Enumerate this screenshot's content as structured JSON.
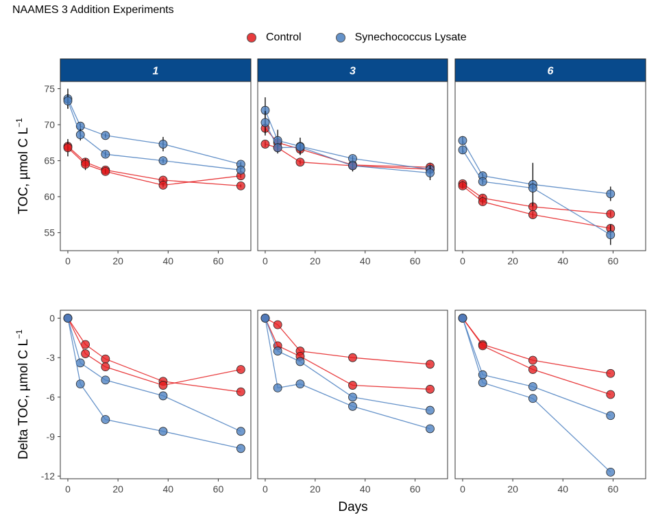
{
  "chart_data": {
    "type": "scatter",
    "title": "NAAMES 3 Addition Experiments",
    "legend": {
      "placement": "top",
      "entries": [
        {
          "name": "Control",
          "color": "#e41a1c"
        },
        {
          "name": "Synechococcus Lysate",
          "color": "#4a7fc0"
        }
      ]
    },
    "xlabel": "Days",
    "colors": {
      "Control": "#e41a1c",
      "Synechococcus Lysate": "#4a7fc0",
      "strip": "#084a8c"
    },
    "facets": [
      "1",
      "3",
      "6"
    ],
    "rows": [
      {
        "key": "toc",
        "ylabel_main": "TOC, µmol C L",
        "ylabel_sup": "−1",
        "ylim": [
          52.5,
          76
        ],
        "yticks": [
          55,
          60,
          65,
          70,
          75
        ],
        "ytick_labels": [
          "55",
          "60",
          "65",
          "70",
          "75"
        ],
        "xlim": [
          -3,
          73
        ],
        "xticks": [
          0,
          20,
          40,
          60
        ],
        "panels": [
          {
            "facet": "1",
            "series": [
              {
                "name": "Control",
                "x": [
                  0,
                  7,
                  15,
                  38,
                  69
                ],
                "y": [
                  67.0,
                  64.8,
                  63.7,
                  62.3,
                  61.5
                ],
                "err": [
                  0.6,
                  0.4,
                  0.3,
                  0.3,
                  0.2
                ]
              },
              {
                "name": "Control",
                "x": [
                  0,
                  7,
                  15,
                  38,
                  69
                ],
                "y": [
                  66.8,
                  64.5,
                  63.5,
                  61.6,
                  62.9
                ],
                "err": [
                  1.2,
                  0.8,
                  0.3,
                  0.3,
                  0.3
                ]
              },
              {
                "name": "Synechococcus Lysate",
                "x": [
                  0,
                  5,
                  15,
                  38,
                  69
                ],
                "y": [
                  73.6,
                  69.8,
                  68.5,
                  67.3,
                  64.5
                ],
                "err": [
                  1.4,
                  0.4,
                  0.3,
                  1.0,
                  0.3
                ]
              },
              {
                "name": "Synechococcus Lysate",
                "x": [
                  0,
                  5,
                  15,
                  38,
                  69
                ],
                "y": [
                  73.3,
                  68.6,
                  65.9,
                  65.0,
                  63.7
                ],
                "err": [
                  1.0,
                  0.8,
                  0.4,
                  0.3,
                  0.3
                ]
              }
            ]
          },
          {
            "facet": "3",
            "series": [
              {
                "name": "Control",
                "x": [
                  0,
                  5,
                  14,
                  35,
                  66
                ],
                "y": [
                  69.5,
                  67.5,
                  66.6,
                  64.4,
                  64.1
                ],
                "err": [
                  1.0,
                  0.5,
                  0.8,
                  0.5,
                  0.6
                ]
              },
              {
                "name": "Control",
                "x": [
                  0,
                  5,
                  14,
                  35,
                  66
                ],
                "y": [
                  67.3,
                  66.8,
                  64.8,
                  64.3,
                  63.8
                ],
                "err": [
                  0.4,
                  0.8,
                  0.3,
                  0.8,
                  0.4
                ]
              },
              {
                "name": "Synechococcus Lysate",
                "x": [
                  0,
                  5,
                  14,
                  35,
                  66
                ],
                "y": [
                  72.0,
                  67.8,
                  67.0,
                  65.3,
                  63.8
                ],
                "err": [
                  1.8,
                  1.5,
                  1.2,
                  0.4,
                  0.5
                ]
              },
              {
                "name": "Synechococcus Lysate",
                "x": [
                  0,
                  5,
                  14,
                  35,
                  66
                ],
                "y": [
                  70.3,
                  66.8,
                  66.9,
                  64.3,
                  63.3
                ],
                "err": [
                  1.6,
                  0.6,
                  0.5,
                  0.5,
                  1.0
                ]
              }
            ]
          },
          {
            "facet": "6",
            "series": [
              {
                "name": "Control",
                "x": [
                  0,
                  8,
                  28,
                  59
                ],
                "y": [
                  61.8,
                  59.8,
                  58.6,
                  57.6
                ],
                "err": [
                  0.4,
                  0.4,
                  0.5,
                  0.4
                ]
              },
              {
                "name": "Control",
                "x": [
                  0,
                  8,
                  28,
                  59
                ],
                "y": [
                  61.5,
                  59.3,
                  57.5,
                  55.6
                ],
                "err": [
                  0.4,
                  0.4,
                  0.4,
                  0.4
                ]
              },
              {
                "name": "Synechococcus Lysate",
                "x": [
                  0,
                  8,
                  28,
                  59
                ],
                "y": [
                  67.8,
                  62.9,
                  61.7,
                  60.4
                ],
                "err": [
                  0.6,
                  0.4,
                  3.0,
                  1.0
                ]
              },
              {
                "name": "Synechococcus Lysate",
                "x": [
                  0,
                  8,
                  28,
                  59
                ],
                "y": [
                  66.5,
                  62.1,
                  61.2,
                  54.7
                ],
                "err": [
                  0.5,
                  0.4,
                  0.5,
                  1.4
                ]
              }
            ]
          }
        ]
      },
      {
        "key": "delta",
        "ylabel_main": "Delta TOC, µmol C L",
        "ylabel_sup": "−1",
        "ylim": [
          -12.2,
          0.6
        ],
        "yticks": [
          -12,
          -9,
          -6,
          -3,
          0
        ],
        "ytick_labels": [
          "-12",
          "-9",
          "-6",
          "-3",
          "0"
        ],
        "xlim": [
          -3,
          73
        ],
        "xticks": [
          0,
          20,
          40,
          60
        ],
        "panels": [
          {
            "facet": "1",
            "series": [
              {
                "name": "Control",
                "x": [
                  0,
                  7,
                  15,
                  38,
                  69
                ],
                "y": [
                  0,
                  -2.0,
                  -3.1,
                  -4.8,
                  -5.6
                ]
              },
              {
                "name": "Control",
                "x": [
                  0,
                  7,
                  15,
                  38,
                  69
                ],
                "y": [
                  0,
                  -2.7,
                  -3.7,
                  -5.1,
                  -3.9
                ]
              },
              {
                "name": "Synechococcus Lysate",
                "x": [
                  0,
                  5,
                  15,
                  38,
                  69
                ],
                "y": [
                  0,
                  -3.4,
                  -4.7,
                  -5.9,
                  -8.6
                ]
              },
              {
                "name": "Synechococcus Lysate",
                "x": [
                  0,
                  5,
                  15,
                  38,
                  69
                ],
                "y": [
                  0,
                  -5.0,
                  -7.7,
                  -8.6,
                  -9.9
                ]
              }
            ]
          },
          {
            "facet": "3",
            "series": [
              {
                "name": "Control",
                "x": [
                  0,
                  5,
                  14,
                  35,
                  66
                ],
                "y": [
                  0,
                  -0.5,
                  -2.5,
                  -3.0,
                  -3.5
                ]
              },
              {
                "name": "Control",
                "x": [
                  0,
                  5,
                  14,
                  35,
                  66
                ],
                "y": [
                  0,
                  -2.1,
                  -2.9,
                  -5.1,
                  -5.4
                ]
              },
              {
                "name": "Synechococcus Lysate",
                "x": [
                  0,
                  5,
                  14,
                  35,
                  66
                ],
                "y": [
                  0,
                  -2.5,
                  -3.3,
                  -6.0,
                  -7.0
                ]
              },
              {
                "name": "Synechococcus Lysate",
                "x": [
                  0,
                  5,
                  14,
                  35,
                  66
                ],
                "y": [
                  0,
                  -5.3,
                  -5.0,
                  -6.7,
                  -8.4
                ]
              }
            ]
          },
          {
            "facet": "6",
            "series": [
              {
                "name": "Control",
                "x": [
                  0,
                  8,
                  28,
                  59
                ],
                "y": [
                  0,
                  -2.0,
                  -3.2,
                  -4.2
                ]
              },
              {
                "name": "Control",
                "x": [
                  0,
                  8,
                  28,
                  59
                ],
                "y": [
                  0,
                  -2.1,
                  -3.9,
                  -5.8
                ]
              },
              {
                "name": "Synechococcus Lysate",
                "x": [
                  0,
                  8,
                  28,
                  59
                ],
                "y": [
                  0,
                  -4.3,
                  -5.2,
                  -7.4
                ]
              },
              {
                "name": "Synechococcus Lysate",
                "x": [
                  0,
                  8,
                  28,
                  59
                ],
                "y": [
                  0,
                  -4.9,
                  -6.1,
                  -11.7
                ]
              }
            ]
          }
        ]
      }
    ]
  }
}
